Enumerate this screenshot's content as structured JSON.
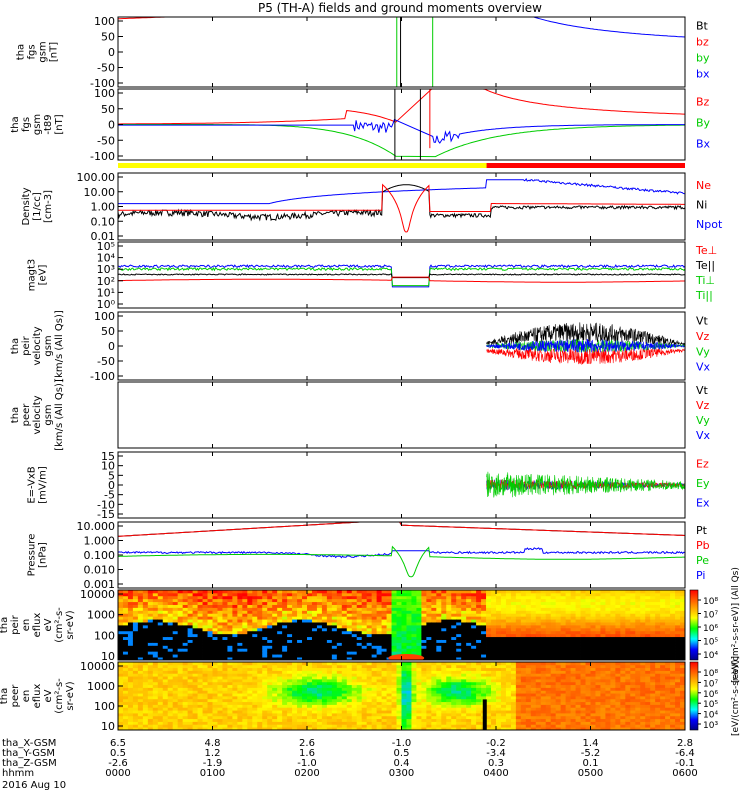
{
  "title": "P5 (TH-A) fields and ground moments overview",
  "colors": {
    "black": "#000000",
    "red": "#ff0000",
    "green": "#00cc00",
    "blue": "#0000ff",
    "yellow": "#ffff00",
    "dark_green": "#00aa00"
  },
  "chart_data": [
    {
      "type": "line",
      "panel": "fgs-gsm",
      "ylabel_lines": [
        "tha",
        "fgs",
        "gsm",
        "[nT]"
      ],
      "ylim": [
        -100,
        100
      ],
      "yticks": [
        "100",
        "50",
        "0",
        "-50",
        "-100"
      ],
      "legend": [
        {
          "label": "Bt",
          "color": "#000000"
        },
        {
          "label": "bz",
          "color": "#ff0000"
        },
        {
          "label": "by",
          "color": "#00cc00"
        },
        {
          "label": "bx",
          "color": "#0000ff"
        }
      ]
    },
    {
      "type": "line",
      "panel": "fgs-gsm-t89",
      "ylabel_lines": [
        "tha",
        "fgs",
        "gsm",
        "-t89",
        "[nT]"
      ],
      "ylim": [
        -120,
        120
      ],
      "yticks": [
        "100",
        "50",
        "0",
        "-50",
        "-100"
      ],
      "legend": [
        {
          "label": "Bz",
          "color": "#ff0000"
        },
        {
          "label": "By",
          "color": "#00cc00"
        },
        {
          "label": "Bx",
          "color": "#0000ff"
        }
      ]
    },
    {
      "type": "bar",
      "panel": "mode-bar",
      "segments": [
        {
          "from": "00:00",
          "to": "03:54",
          "color": "#ffff00"
        },
        {
          "from": "03:54",
          "to": "06:00",
          "color": "#ff0000"
        }
      ]
    },
    {
      "type": "line",
      "panel": "density",
      "ylabel_lines": [
        "Density",
        "[1/cc]",
        "[cm-3]"
      ],
      "ylim": [
        0.01,
        100
      ],
      "yscale": "log",
      "yticks": [
        "100.00",
        "10.00",
        "1.00",
        "0.10",
        "0.01"
      ],
      "legend": [
        {
          "label": "Ne",
          "color": "#ff0000"
        },
        {
          "label": "Ni",
          "color": "#000000"
        },
        {
          "label": "Npot",
          "color": "#0000ff"
        }
      ]
    },
    {
      "type": "line",
      "panel": "temperature",
      "ylabel_lines": [
        "magt3",
        "[eV]"
      ],
      "ylim": [
        1,
        100000
      ],
      "yscale": "log",
      "yticks": [
        "10⁵",
        "10⁴",
        "10³",
        "10²",
        "10¹",
        "10⁰"
      ],
      "legend": [
        {
          "label": "Te⊥",
          "color": "#ff0000"
        },
        {
          "label": "Te||",
          "color": "#000000"
        },
        {
          "label": "Ti⊥",
          "color": "#00cc00"
        },
        {
          "label": "Ti||",
          "color": "#00cc00"
        }
      ]
    },
    {
      "type": "line",
      "panel": "peir-velocity",
      "ylabel_lines": [
        "tha",
        "peir",
        "velocity",
        "gsm",
        "[km/s (All Qs)]"
      ],
      "ylim": [
        -100,
        100
      ],
      "yticks": [
        "100",
        "50",
        "0",
        "-50",
        "-100"
      ],
      "legend": [
        {
          "label": "Vt",
          "color": "#000000"
        },
        {
          "label": "Vz",
          "color": "#ff0000"
        },
        {
          "label": "Vy",
          "color": "#00cc00"
        },
        {
          "label": "Vx",
          "color": "#0000ff"
        }
      ]
    },
    {
      "type": "line",
      "panel": "peer-velocity",
      "ylabel_lines": [
        "tha",
        "peer",
        "velocity",
        "gsm",
        "[km/s (All Qs)]"
      ],
      "ylim": [
        -100,
        100
      ],
      "yticks": [],
      "legend": [
        {
          "label": "Vt",
          "color": "#000000"
        },
        {
          "label": "Vz",
          "color": "#ff0000"
        },
        {
          "label": "Vy",
          "color": "#00cc00"
        },
        {
          "label": "Vx",
          "color": "#0000ff"
        }
      ]
    },
    {
      "type": "line",
      "panel": "efield",
      "ylabel_lines": [
        "E=-VxB",
        "[mV/m]"
      ],
      "ylim": [
        -17,
        17
      ],
      "yticks": [
        "15",
        "10",
        "5",
        "0",
        "-5",
        "-10",
        "-15"
      ],
      "legend": [
        {
          "label": "Ez",
          "color": "#ff0000"
        },
        {
          "label": "Ey",
          "color": "#00cc00"
        },
        {
          "label": "Ex",
          "color": "#0000ff"
        }
      ]
    },
    {
      "type": "line",
      "panel": "pressure",
      "ylabel_lines": [
        "Pressure",
        "[nPa]"
      ],
      "ylim": [
        0.0005,
        20
      ],
      "yscale": "log",
      "yticks": [
        "10.000",
        "1.000",
        "0.100",
        "0.010",
        "0.001"
      ],
      "legend": [
        {
          "label": "Pt",
          "color": "#000000"
        },
        {
          "label": "Pb",
          "color": "#ff0000"
        },
        {
          "label": "Pe",
          "color": "#00cc00"
        },
        {
          "label": "Pi",
          "color": "#0000ff"
        }
      ]
    },
    {
      "type": "heatmap",
      "panel": "peir-spectrogram",
      "ylabel_lines": [
        "tha",
        "peir",
        "en",
        "eflux",
        "eV",
        "(cm²-s-",
        "sr-eV)"
      ],
      "ylim": [
        5,
        30000
      ],
      "yscale": "log",
      "yticks": [
        "10000",
        "1000",
        "100",
        "10"
      ]
    },
    {
      "type": "heatmap",
      "panel": "peer-spectrogram",
      "ylabel_lines": [
        "tha",
        "peer",
        "en",
        "eflux",
        "eV",
        "(cm²-s-",
        "sr-eV)"
      ],
      "ylim": [
        5,
        30000
      ],
      "yscale": "log",
      "yticks": [
        "10000",
        "1000",
        "100",
        "10"
      ]
    }
  ],
  "colorbar": {
    "top": {
      "ticks": [
        "10⁸",
        "10⁷",
        "10⁶",
        "10⁵",
        "10⁴"
      ],
      "label": "[eV/(cm²-s-sr-eV)] (All Qs)"
    },
    "bottom": {
      "ticks": [
        "10⁸",
        "10⁷",
        "10⁶",
        "10⁵",
        "10⁴",
        "10³"
      ],
      "label": "[eV/(cm²-s-sr-eV)]"
    }
  },
  "xaxis": {
    "rows": [
      {
        "label": "tha_X-GSM",
        "values": [
          "6.5",
          "4.8",
          "2.6",
          "-1.0",
          "-0.2",
          "1.4",
          "2.8"
        ]
      },
      {
        "label": "tha_Y-GSM",
        "values": [
          "0.5",
          "1.2",
          "1.6",
          "0.5",
          "-3.4",
          "-5.2",
          "-6.4"
        ]
      },
      {
        "label": "tha_Z-GSM",
        "values": [
          "-2.6",
          "-1.9",
          "-1.0",
          "0.4",
          "0.3",
          "0.1",
          "-0.1"
        ]
      },
      {
        "label": "hhmm",
        "values": [
          "0000",
          "0100",
          "0200",
          "0300",
          "0400",
          "0500",
          "0600"
        ]
      }
    ],
    "date": "2016 Aug 10"
  }
}
